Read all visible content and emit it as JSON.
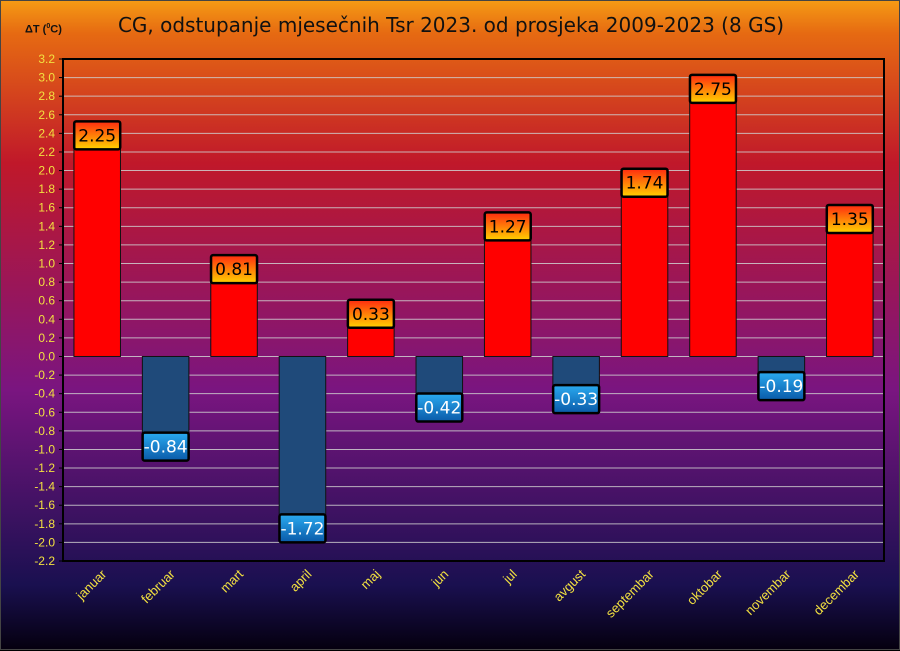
{
  "title": "CG, odstupanje mjesečnih Tsr 2023. od prosjeka 2009-2023 (8 GS)",
  "y_unit": {
    "prefix": "ΔT (",
    "sup": "0",
    "suffix": "C)"
  },
  "chart_data": {
    "type": "bar",
    "title": "CG, odstupanje mjesečnih Tsr 2023. od prosjeka 2009-2023 (8 GS)",
    "ylabel": "ΔT (0C)",
    "xlabel": "",
    "categories": [
      "januar",
      "februar",
      "mart",
      "april",
      "maj",
      "jun",
      "jul",
      "avgust",
      "septembar",
      "oktobar",
      "novembar",
      "decembar"
    ],
    "values": [
      2.25,
      -0.84,
      0.81,
      -1.72,
      0.33,
      -0.42,
      1.27,
      -0.33,
      1.74,
      2.75,
      -0.19,
      1.35
    ],
    "value_labels": [
      "2.25",
      "-0.84",
      "0.81",
      "-1.72",
      "0.33",
      "-0.42",
      "1.27",
      "-0.33",
      "1.74",
      "2.75",
      "-0.19",
      "1.35"
    ],
    "ylim": [
      -2.2,
      3.2
    ],
    "yticks": [
      "3.2",
      "3.0",
      "2.8",
      "2.6",
      "2.4",
      "2.2",
      "2.0",
      "1.8",
      "1.6",
      "1.4",
      "1.2",
      "1.0",
      "0.8",
      "0.6",
      "0.4",
      "0.2",
      "0.0",
      "-0.2",
      "-0.4",
      "-0.6",
      "-0.8",
      "-1.0",
      "-1.2",
      "-1.4",
      "-1.6",
      "-1.8",
      "-2.0",
      "-2.2"
    ],
    "grid": true,
    "colors": {
      "positive_bar": "#ff0000",
      "negative_bar": "#1f4a7a",
      "positive_label_top": "#ff2a10",
      "positive_label_bottom": "#ffd200",
      "negative_label_top": "#2aaaf0",
      "negative_label_bottom": "#0a5aa8",
      "tick_text": "#f2e040",
      "grid": "#cfcfcf"
    }
  }
}
